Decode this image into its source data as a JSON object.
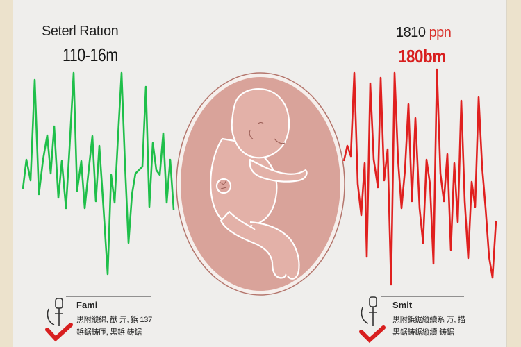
{
  "left_panel": {
    "title_first": "S",
    "title_rest": "etterl Rati on",
    "title_display": "Seterl Ratıon",
    "value": "110-16m",
    "trace_color": "#1fbf4a",
    "status_icon": "check-mark-icon"
  },
  "right_panel": {
    "title_number": "1810",
    "title_unit": "ppn",
    "value": "180bm",
    "trace_color": "#e0201f",
    "status_icon": "check-mark-icon"
  },
  "center": {
    "icon": "fetus-in-womb-illustration",
    "womb_color": "#d9a39a",
    "border_color": "#b4766d"
  },
  "left_note": {
    "heading": "Fami",
    "line1": "黒附縦綿, 猷 亓, 鋲 137",
    "line2": "鋲鋸鋳匝, 黒鋲 鋳鋸",
    "icon": "probe-icon"
  },
  "right_note": {
    "heading": "Smit",
    "line1": "黒附鋲鋸縦續系 万, 描",
    "line2": "黒鋸鋳鋸縦續 鋳鋸",
    "icon": "probe-icon"
  }
}
